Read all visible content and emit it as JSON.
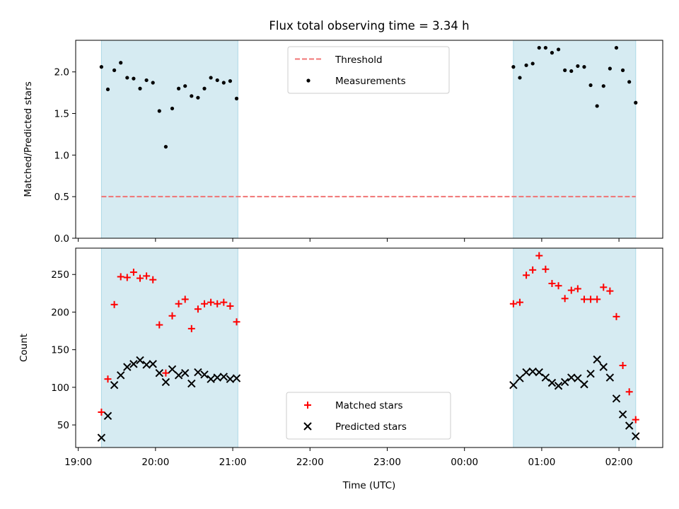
{
  "chart_data": [
    {
      "type": "scatter",
      "panel": "top",
      "title": "Flux total observing time = 3.34 h",
      "xlabel": "",
      "ylabel": "Matched/Predicted stars",
      "xlim": [
        "18:58",
        "02:34"
      ],
      "ylim": [
        0,
        2.38
      ],
      "yticks": [
        "0.0",
        "0.5",
        "1.0",
        "1.5",
        "2.0"
      ],
      "legend_position": "top-center",
      "colors": {
        "threshold": "#f07474",
        "measurements": "#000000",
        "shade": "#add8e6"
      },
      "shaded_intervals": [
        [
          "19:18",
          "21:04"
        ],
        [
          "00:38",
          "02:13"
        ]
      ],
      "threshold": {
        "name": "Threshold",
        "y": 0.5,
        "x_range": [
          "19:18",
          "02:13"
        ]
      },
      "series": [
        {
          "name": "Measurements",
          "x": [
            "19:18",
            "19:23",
            "19:28",
            "19:33",
            "19:38",
            "19:43",
            "19:48",
            "19:53",
            "19:58",
            "20:03",
            "20:08",
            "20:13",
            "20:18",
            "20:23",
            "20:28",
            "20:33",
            "20:38",
            "20:43",
            "20:48",
            "20:53",
            "20:58",
            "21:03",
            "00:38",
            "00:43",
            "00:48",
            "00:53",
            "00:58",
            "01:03",
            "01:08",
            "01:13",
            "01:18",
            "01:23",
            "01:28",
            "01:33",
            "01:38",
            "01:43",
            "01:48",
            "01:53",
            "01:58",
            "02:03",
            "02:08",
            "02:13"
          ],
          "y": [
            2.06,
            1.79,
            2.02,
            2.11,
            1.93,
            1.92,
            1.8,
            1.9,
            1.87,
            1.53,
            1.1,
            1.56,
            1.8,
            1.83,
            1.71,
            1.69,
            1.8,
            1.93,
            1.9,
            1.87,
            1.89,
            1.68,
            2.06,
            1.93,
            2.08,
            2.1,
            2.29,
            2.29,
            2.23,
            2.27,
            2.02,
            2.01,
            2.07,
            2.06,
            1.84,
            1.59,
            1.83,
            2.04,
            2.29,
            2.02,
            1.88,
            1.63
          ]
        }
      ]
    },
    {
      "type": "scatter",
      "panel": "bottom",
      "xlabel": "Time (UTC)",
      "ylabel": "Count",
      "xlim": [
        "18:58",
        "02:34"
      ],
      "ylim": [
        20,
        285
      ],
      "xticks": [
        "19:00",
        "20:00",
        "21:00",
        "22:00",
        "23:00",
        "00:00",
        "01:00",
        "02:00"
      ],
      "yticks": [
        "50",
        "100",
        "150",
        "200",
        "250"
      ],
      "legend_position": "lower-center",
      "colors": {
        "matched": "#ff0000",
        "predicted": "#000000",
        "shade": "#add8e6"
      },
      "shaded_intervals": [
        [
          "19:18",
          "21:04"
        ],
        [
          "00:38",
          "02:13"
        ]
      ],
      "series": [
        {
          "name": "Matched stars",
          "marker": "plus",
          "x": [
            "19:18",
            "19:23",
            "19:28",
            "19:33",
            "19:38",
            "19:43",
            "19:48",
            "19:53",
            "19:58",
            "20:03",
            "20:08",
            "20:13",
            "20:18",
            "20:23",
            "20:28",
            "20:33",
            "20:38",
            "20:43",
            "20:48",
            "20:53",
            "20:58",
            "21:03",
            "00:38",
            "00:43",
            "00:48",
            "00:53",
            "00:58",
            "01:03",
            "01:08",
            "01:13",
            "01:18",
            "01:23",
            "01:28",
            "01:33",
            "01:38",
            "01:43",
            "01:48",
            "01:53",
            "01:58",
            "02:03",
            "02:08",
            "02:13"
          ],
          "y": [
            67,
            111,
            210,
            247,
            246,
            253,
            245,
            248,
            243,
            183,
            119,
            195,
            211,
            217,
            178,
            204,
            211,
            213,
            211,
            213,
            208,
            187,
            211,
            213,
            249,
            256,
            275,
            257,
            238,
            235,
            218,
            229,
            231,
            217,
            217,
            217,
            233,
            228,
            194,
            129,
            94,
            57
          ]
        },
        {
          "name": "Predicted stars",
          "marker": "x",
          "x": [
            "19:18",
            "19:23",
            "19:28",
            "19:33",
            "19:38",
            "19:43",
            "19:48",
            "19:53",
            "19:58",
            "20:03",
            "20:08",
            "20:13",
            "20:18",
            "20:23",
            "20:28",
            "20:33",
            "20:38",
            "20:43",
            "20:48",
            "20:53",
            "20:58",
            "21:03",
            "00:38",
            "00:43",
            "00:48",
            "00:53",
            "00:58",
            "01:03",
            "01:08",
            "01:13",
            "01:18",
            "01:23",
            "01:28",
            "01:33",
            "01:38",
            "01:43",
            "01:48",
            "01:53",
            "01:58",
            "02:03",
            "02:08",
            "02:13"
          ],
          "y": [
            33,
            62,
            103,
            116,
            127,
            131,
            136,
            130,
            131,
            119,
            107,
            124,
            116,
            119,
            105,
            120,
            117,
            111,
            113,
            114,
            111,
            112,
            103,
            112,
            120,
            121,
            120,
            113,
            106,
            102,
            107,
            113,
            112,
            104,
            118,
            137,
            127,
            113,
            85,
            64,
            49,
            35
          ]
        }
      ]
    }
  ]
}
